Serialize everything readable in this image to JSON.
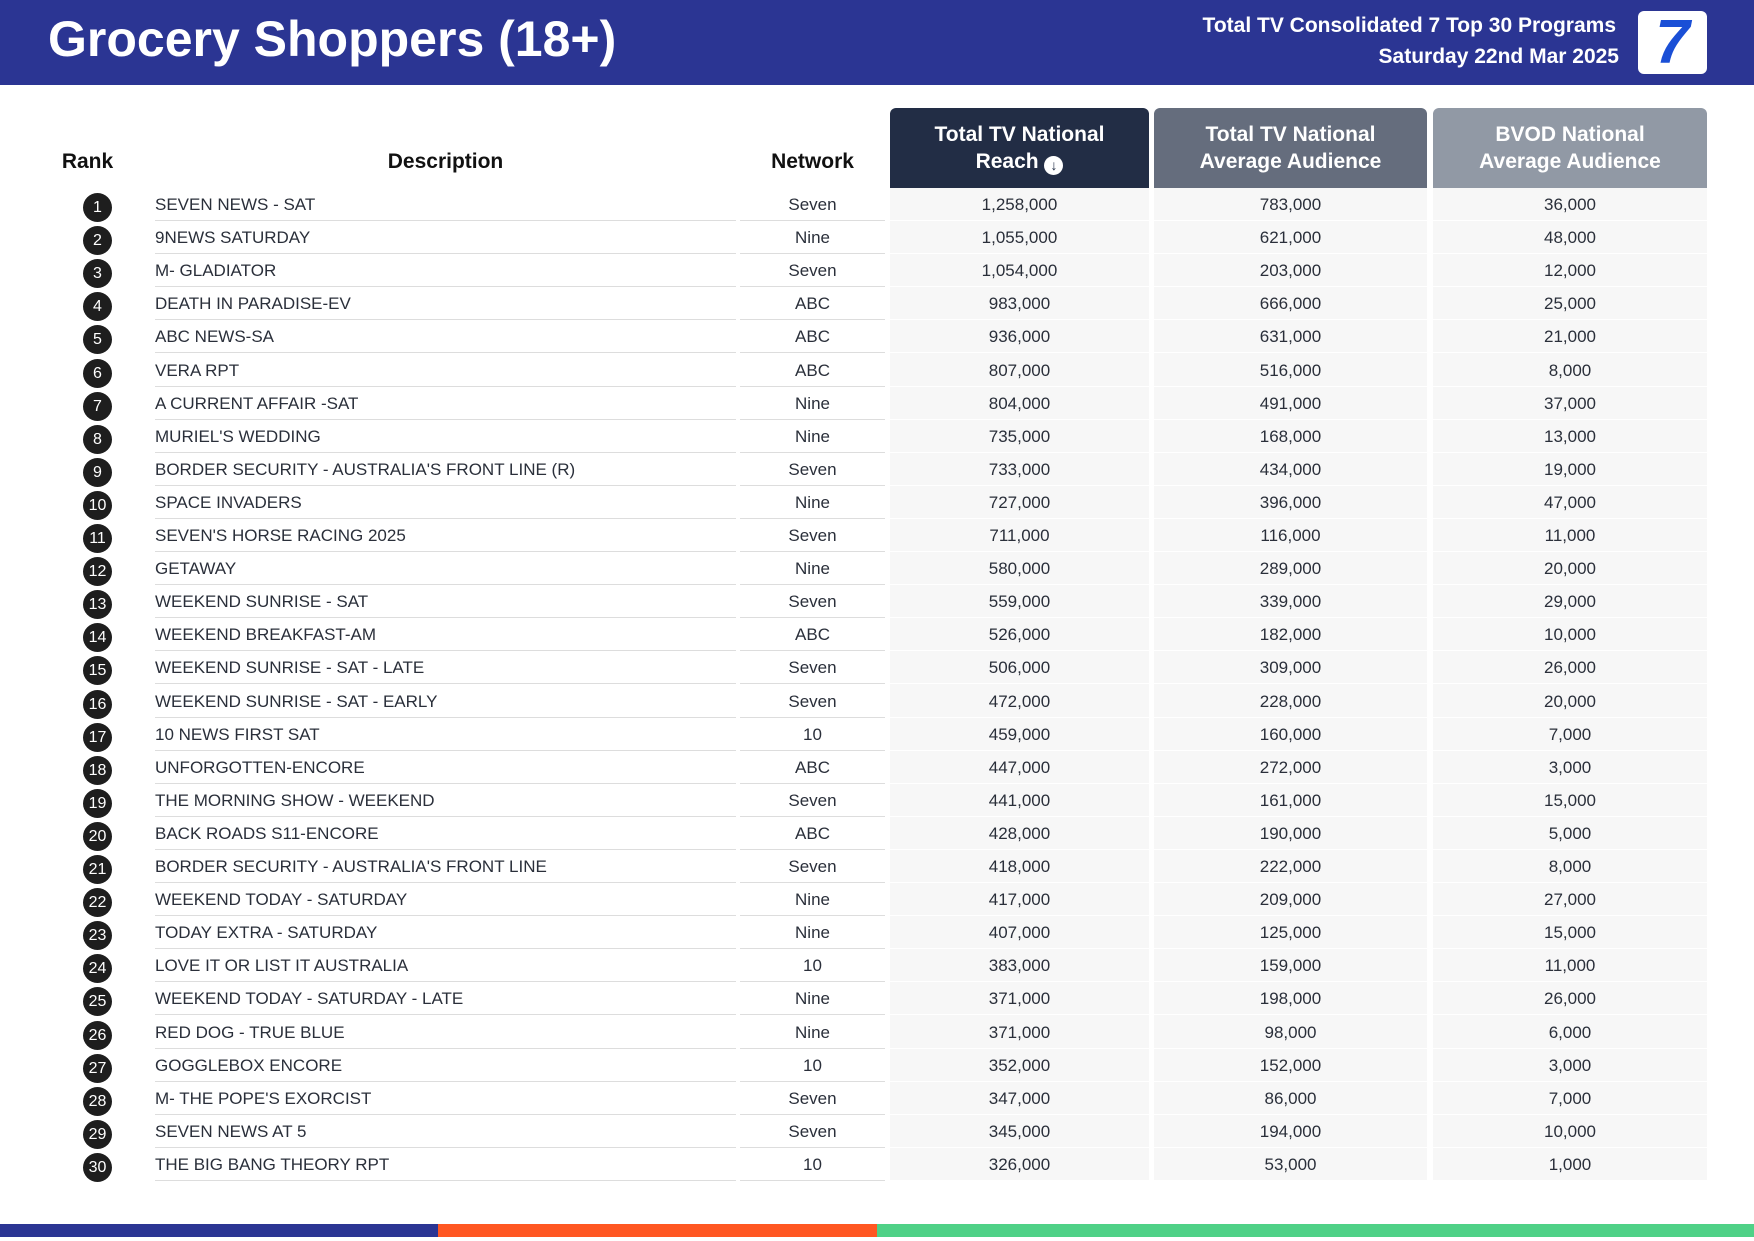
{
  "header": {
    "title": "Grocery Shoppers (18+)",
    "subtitle": "Total TV Consolidated 7 Top 30 Programs",
    "date": "Saturday 22nd Mar 2025",
    "logo": "7"
  },
  "columns": {
    "rank": "Rank",
    "description": "Description",
    "network": "Network",
    "reach": "Total TV National Reach",
    "avg": "Total TV National Average Audience",
    "bvod": "BVOD National Average Audience",
    "sort_icon": "arrow-down-circle-icon"
  },
  "colors": {
    "header": "#2b3593",
    "reach_header": "#222d45",
    "avg_header": "#656d7d",
    "bvod_header": "#9199a5",
    "bar": [
      "#2b3593",
      "#ff5722",
      "#4fd187"
    ]
  },
  "rows": [
    {
      "rank": "1",
      "description": "SEVEN NEWS - SAT",
      "network": "Seven",
      "reach": "1,258,000",
      "avg": "783,000",
      "bvod": "36,000"
    },
    {
      "rank": "2",
      "description": "9NEWS SATURDAY",
      "network": "Nine",
      "reach": "1,055,000",
      "avg": "621,000",
      "bvod": "48,000"
    },
    {
      "rank": "3",
      "description": "M- GLADIATOR",
      "network": "Seven",
      "reach": "1,054,000",
      "avg": "203,000",
      "bvod": "12,000"
    },
    {
      "rank": "4",
      "description": "DEATH IN PARADISE-EV",
      "network": "ABC",
      "reach": "983,000",
      "avg": "666,000",
      "bvod": "25,000"
    },
    {
      "rank": "5",
      "description": "ABC NEWS-SA",
      "network": "ABC",
      "reach": "936,000",
      "avg": "631,000",
      "bvod": "21,000"
    },
    {
      "rank": "6",
      "description": "VERA RPT",
      "network": "ABC",
      "reach": "807,000",
      "avg": "516,000",
      "bvod": "8,000"
    },
    {
      "rank": "7",
      "description": "A CURRENT AFFAIR -SAT",
      "network": "Nine",
      "reach": "804,000",
      "avg": "491,000",
      "bvod": "37,000"
    },
    {
      "rank": "8",
      "description": "MURIEL'S WEDDING",
      "network": "Nine",
      "reach": "735,000",
      "avg": "168,000",
      "bvod": "13,000"
    },
    {
      "rank": "9",
      "description": "BORDER SECURITY - AUSTRALIA'S FRONT LINE (R)",
      "network": "Seven",
      "reach": "733,000",
      "avg": "434,000",
      "bvod": "19,000"
    },
    {
      "rank": "10",
      "description": "SPACE INVADERS",
      "network": "Nine",
      "reach": "727,000",
      "avg": "396,000",
      "bvod": "47,000"
    },
    {
      "rank": "11",
      "description": "SEVEN'S HORSE RACING 2025",
      "network": "Seven",
      "reach": "711,000",
      "avg": "116,000",
      "bvod": "11,000"
    },
    {
      "rank": "12",
      "description": "GETAWAY",
      "network": "Nine",
      "reach": "580,000",
      "avg": "289,000",
      "bvod": "20,000"
    },
    {
      "rank": "13",
      "description": "WEEKEND SUNRISE - SAT",
      "network": "Seven",
      "reach": "559,000",
      "avg": "339,000",
      "bvod": "29,000"
    },
    {
      "rank": "14",
      "description": "WEEKEND BREAKFAST-AM",
      "network": "ABC",
      "reach": "526,000",
      "avg": "182,000",
      "bvod": "10,000"
    },
    {
      "rank": "15",
      "description": "WEEKEND SUNRISE - SAT - LATE",
      "network": "Seven",
      "reach": "506,000",
      "avg": "309,000",
      "bvod": "26,000"
    },
    {
      "rank": "16",
      "description": "WEEKEND SUNRISE - SAT - EARLY",
      "network": "Seven",
      "reach": "472,000",
      "avg": "228,000",
      "bvod": "20,000"
    },
    {
      "rank": "17",
      "description": "10 NEWS FIRST SAT",
      "network": "10",
      "reach": "459,000",
      "avg": "160,000",
      "bvod": "7,000"
    },
    {
      "rank": "18",
      "description": "UNFORGOTTEN-ENCORE",
      "network": "ABC",
      "reach": "447,000",
      "avg": "272,000",
      "bvod": "3,000"
    },
    {
      "rank": "19",
      "description": "THE MORNING SHOW - WEEKEND",
      "network": "Seven",
      "reach": "441,000",
      "avg": "161,000",
      "bvod": "15,000"
    },
    {
      "rank": "20",
      "description": "BACK ROADS S11-ENCORE",
      "network": "ABC",
      "reach": "428,000",
      "avg": "190,000",
      "bvod": "5,000"
    },
    {
      "rank": "21",
      "description": "BORDER SECURITY - AUSTRALIA'S FRONT LINE",
      "network": "Seven",
      "reach": "418,000",
      "avg": "222,000",
      "bvod": "8,000"
    },
    {
      "rank": "22",
      "description": "WEEKEND TODAY - SATURDAY",
      "network": "Nine",
      "reach": "417,000",
      "avg": "209,000",
      "bvod": "27,000"
    },
    {
      "rank": "23",
      "description": "TODAY EXTRA - SATURDAY",
      "network": "Nine",
      "reach": "407,000",
      "avg": "125,000",
      "bvod": "15,000"
    },
    {
      "rank": "24",
      "description": "LOVE IT OR LIST IT AUSTRALIA",
      "network": "10",
      "reach": "383,000",
      "avg": "159,000",
      "bvod": "11,000"
    },
    {
      "rank": "25",
      "description": "WEEKEND TODAY - SATURDAY - LATE",
      "network": "Nine",
      "reach": "371,000",
      "avg": "198,000",
      "bvod": "26,000"
    },
    {
      "rank": "26",
      "description": "RED DOG - TRUE BLUE",
      "network": "Nine",
      "reach": "371,000",
      "avg": "98,000",
      "bvod": "6,000"
    },
    {
      "rank": "27",
      "description": "GOGGLEBOX ENCORE",
      "network": "10",
      "reach": "352,000",
      "avg": "152,000",
      "bvod": "3,000"
    },
    {
      "rank": "28",
      "description": "M- THE POPE'S EXORCIST",
      "network": "Seven",
      "reach": "347,000",
      "avg": "86,000",
      "bvod": "7,000"
    },
    {
      "rank": "29",
      "description": "SEVEN NEWS AT 5",
      "network": "Seven",
      "reach": "345,000",
      "avg": "194,000",
      "bvod": "10,000"
    },
    {
      "rank": "30",
      "description": "THE BIG BANG THEORY RPT",
      "network": "10",
      "reach": "326,000",
      "avg": "53,000",
      "bvod": "1,000"
    }
  ]
}
